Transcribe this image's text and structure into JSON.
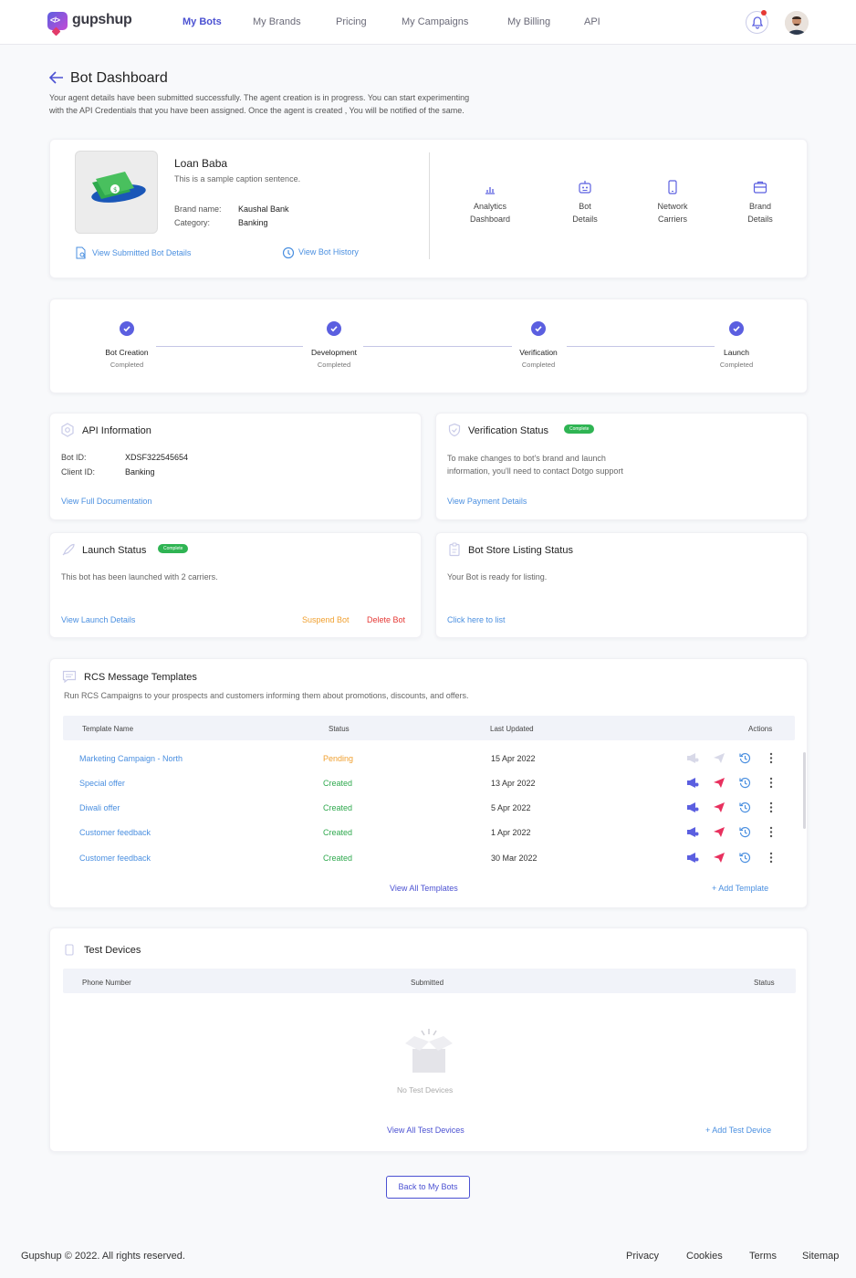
{
  "brand": {
    "name": "gupshup"
  },
  "nav": {
    "items": [
      {
        "label": "My Bots",
        "active": true
      },
      {
        "label": "My Brands"
      },
      {
        "label": "Pricing"
      },
      {
        "label": "My Campaigns"
      },
      {
        "label": "My Billing"
      },
      {
        "label": "API"
      }
    ]
  },
  "page": {
    "title": "Bot Dashboard",
    "description_line1": "Your agent details have been submitted successfully. The agent creation is in progress. You can start experimenting",
    "description_line2": "with the API Credentials that you have been assigned. Once the agent is created , You will be notified of the same."
  },
  "bot": {
    "name": "Loan Baba",
    "caption": "This is a sample caption sentence.",
    "brand_label": "Brand name:",
    "brand_value": "Kaushal Bank",
    "category_label": "Category:",
    "category_value": "Banking",
    "view_submitted": "View Submitted Bot Details",
    "view_history": "View Bot History"
  },
  "quick_actions": [
    {
      "line1": "Analytics",
      "line2": "Dashboard",
      "icon": "bar-chart-icon"
    },
    {
      "line1": "Bot",
      "line2": "Details",
      "icon": "bot-icon"
    },
    {
      "line1": "Network",
      "line2": "Carriers",
      "icon": "phone-icon"
    },
    {
      "line1": "Brand",
      "line2": "Details",
      "icon": "briefcase-icon"
    }
  ],
  "steps": [
    {
      "title": "Bot Creation",
      "status": "Completed"
    },
    {
      "title": "Development",
      "status": "Completed"
    },
    {
      "title": "Verification",
      "status": "Completed"
    },
    {
      "title": "Launch",
      "status": "Completed"
    }
  ],
  "api_info": {
    "title": "API Information",
    "bot_id_label": "Bot ID:",
    "bot_id": "XDSF322545654",
    "client_id_label": "Client ID:",
    "client_id": "Banking",
    "link": "View Full Documentation"
  },
  "verification": {
    "title": "Verification Status",
    "badge": "Complete",
    "line1": "To make changes to bot's brand and launch",
    "line2": "information, you'll need to contact Dotgo support",
    "link": "View Payment Details"
  },
  "launch": {
    "title": "Launch Status",
    "badge": "Complete",
    "text": "This bot has been launched with 2 carriers.",
    "link": "View Launch Details",
    "suspend": "Suspend Bot",
    "delete": "Delete Bot"
  },
  "store": {
    "title": "Bot Store Listing Status",
    "text": "Your Bot is ready for listing.",
    "link": "Click here to list"
  },
  "templates": {
    "title": "RCS Message Templates",
    "subtitle": "Run RCS Campaigns to your prospects and customers informing them about promotions, discounts, and offers.",
    "headers": {
      "name": "Template Name",
      "status": "Status",
      "updated": "Last Updated",
      "actions": "Actions"
    },
    "rows": [
      {
        "name": "Marketing Campaign - North",
        "status": "Pending",
        "date": "15 Apr 2022"
      },
      {
        "name": "Special offer",
        "status": "Created",
        "date": "13 Apr 2022"
      },
      {
        "name": "Diwali offer",
        "status": "Created",
        "date": "5 Apr 2022"
      },
      {
        "name": "Customer feedback",
        "status": "Created",
        "date": "1 Apr 2022"
      },
      {
        "name": "Customer feedback",
        "status": "Created",
        "date": "30 Mar 2022"
      }
    ],
    "view_all": "View All Templates",
    "add": "+ Add Template"
  },
  "devices": {
    "title": "Test Devices",
    "headers": {
      "phone": "Phone Number",
      "submitted": "Submitted",
      "status": "Status"
    },
    "empty": "No Test Devices",
    "view_all": "View All Test Devices",
    "add": "+ Add Test Device"
  },
  "back_button": "Back to My Bots",
  "footer": {
    "copyright": "Gupshup © 2022. All rights reserved.",
    "links": [
      "Privacy",
      "Cookies",
      "Terms",
      "Sitemap"
    ]
  },
  "colors": {
    "accent": "#4b51d2",
    "link": "#4a8fe0",
    "pending": "#f0a030",
    "created": "#2fa94e",
    "danger": "#e53935",
    "badge": "#2fb453"
  }
}
